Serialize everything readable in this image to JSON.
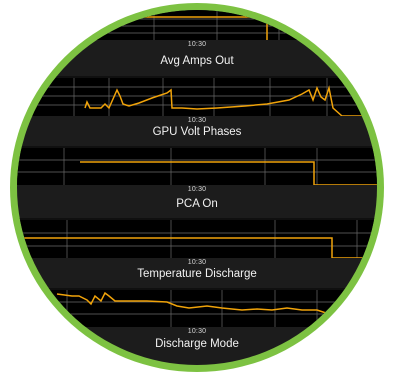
{
  "colors": {
    "accent": "#f0a30a",
    "frame": "#7dc242",
    "plot_bg": "#000000",
    "panel_bg": "#1c1c1c",
    "grid": "#6a6a6a",
    "text": "#f2f2f2"
  },
  "charts": [
    {
      "title": "Avg Amps Out",
      "time_label": "10:30"
    },
    {
      "title": "GPU Volt Phases",
      "time_label": "10:30"
    },
    {
      "title": "PCA On",
      "time_label": "10:30"
    },
    {
      "title": "Temperature Discharge",
      "time_label": "10:30"
    },
    {
      "title": "Discharge Mode",
      "time_label": "10:30"
    }
  ]
}
